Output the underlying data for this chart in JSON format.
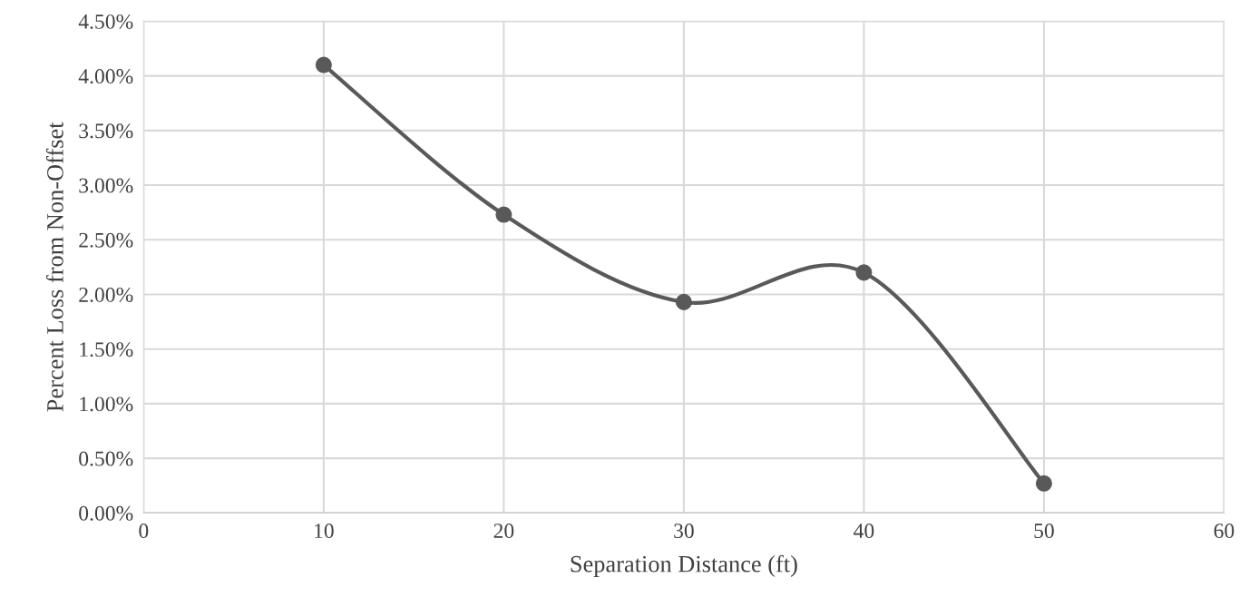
{
  "chart_data": {
    "type": "line",
    "xlabel": "Separation Distance (ft)",
    "ylabel": "Percent Loss from Non-Offset",
    "x": [
      10,
      20,
      30,
      40,
      50
    ],
    "series": [
      {
        "color": "#595959",
        "values": [
          4.1,
          2.73,
          1.93,
          2.2,
          0.27
        ]
      }
    ],
    "xlim": [
      0,
      60
    ],
    "xticks": [
      0,
      10,
      20,
      30,
      40,
      50,
      60
    ],
    "ylim": [
      0,
      4.5
    ],
    "yticks": [
      {
        "value": 0,
        "label": "0.00%"
      },
      {
        "value": 0.5,
        "label": "0.50%"
      },
      {
        "value": 1,
        "label": "1.00%"
      },
      {
        "value": 1.5,
        "label": "1.50%"
      },
      {
        "value": 2,
        "label": "2.00%"
      },
      {
        "value": 2.5,
        "label": "2.50%"
      },
      {
        "value": 3,
        "label": "3.00%"
      },
      {
        "value": 3.5,
        "label": "3.50%"
      },
      {
        "value": 4,
        "label": "4.00%"
      },
      {
        "value": 4.5,
        "label": "4.50%"
      }
    ],
    "grid": true,
    "marker": "circle",
    "line_style": "solid",
    "legend": false
  }
}
